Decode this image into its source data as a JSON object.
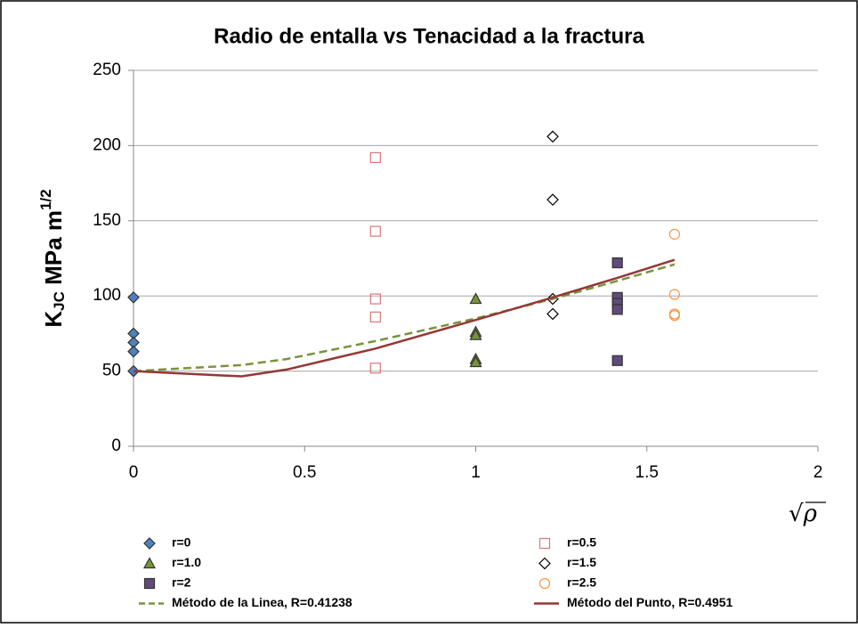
{
  "chart_data": {
    "type": "scatter",
    "title": "Radio de entalla vs Tenacidad a la fractura",
    "ylabel": {
      "main": "K",
      "sub": "JC",
      "unit": " MPa m",
      "sup": "1/2"
    },
    "xlabel": "√ρ",
    "xlim": [
      0,
      2
    ],
    "xticks": [
      0,
      0.5,
      1,
      1.5,
      2
    ],
    "ylim": [
      0,
      250
    ],
    "yticks": [
      0,
      50,
      100,
      150,
      200,
      250
    ],
    "grid": true,
    "legend": "bottom",
    "series": [
      {
        "name": "r=0",
        "color": "#4f81bd",
        "marker": "diamond",
        "filled": true,
        "x": [
          0,
          0,
          0,
          0,
          0
        ],
        "values": [
          99,
          75,
          69,
          63,
          50
        ]
      },
      {
        "name": "r=0.5",
        "color": "#d9787a",
        "marker": "square",
        "filled": false,
        "x": [
          0.707,
          0.707,
          0.707,
          0.707,
          0.707
        ],
        "values": [
          192,
          143,
          98,
          86,
          52
        ]
      },
      {
        "name": "r=1.0",
        "color": "#77933c",
        "marker": "triangle",
        "filled": true,
        "x": [
          1,
          1,
          1,
          1,
          1
        ],
        "values": [
          98,
          76,
          74,
          58,
          56
        ]
      },
      {
        "name": "r=1.5",
        "color": "#000000",
        "marker": "diamond",
        "filled": false,
        "x": [
          1.225,
          1.225,
          1.225,
          1.225
        ],
        "values": [
          206,
          164,
          98,
          88
        ]
      },
      {
        "name": "r=2",
        "color": "#604a7b",
        "marker": "square",
        "filled": true,
        "x": [
          1.414,
          1.414,
          1.414,
          1.414,
          1.414
        ],
        "values": [
          122,
          99,
          95,
          91,
          57
        ]
      },
      {
        "name": "r=2.5",
        "color": "#f79646",
        "marker": "circle",
        "filled": false,
        "x": [
          1.581,
          1.581,
          1.581,
          1.581
        ],
        "values": [
          141,
          101,
          88,
          87
        ]
      },
      {
        "name": "Método de la Linea, R=0.41238",
        "color": "#77933c",
        "marker": "line",
        "dashed": true,
        "x": [
          0,
          0.316,
          0.447,
          0.707,
          1,
          1.225,
          1.414,
          1.581
        ],
        "values": [
          50,
          54,
          58,
          70,
          85,
          98,
          110,
          121
        ]
      },
      {
        "name": "Método del Punto, R=0.4951",
        "color": "#953735",
        "marker": "line",
        "dashed": false,
        "x": [
          0,
          0.316,
          0.447,
          0.707,
          1,
          1.225,
          1.414,
          1.581
        ],
        "values": [
          50,
          46.5,
          51,
          65,
          84,
          99,
          112,
          124
        ]
      }
    ]
  }
}
